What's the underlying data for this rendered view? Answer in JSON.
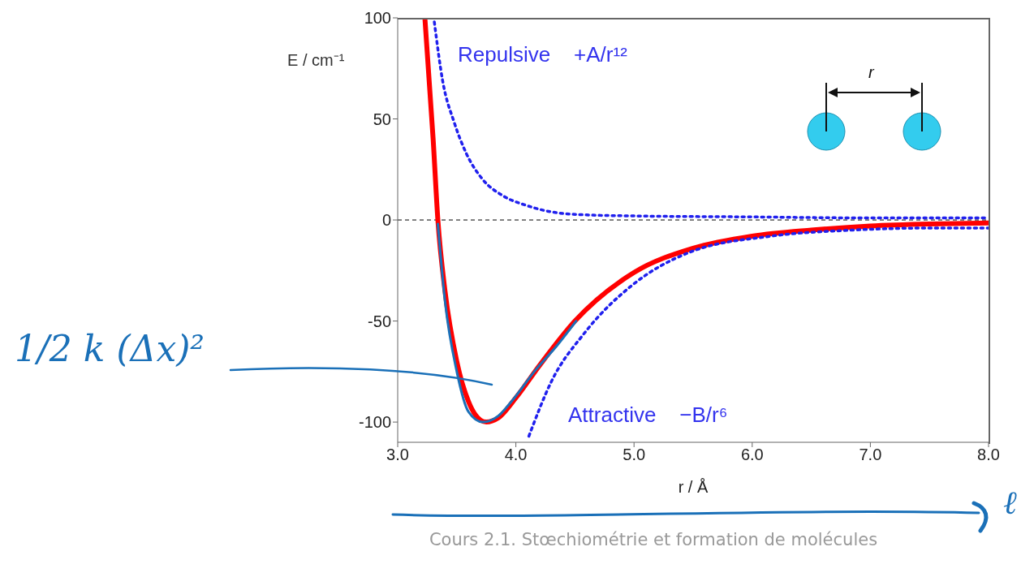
{
  "chart_data": {
    "type": "line",
    "xlabel": "r / Å",
    "ylabel": "E / cm⁻¹",
    "xlim": [
      3,
      8
    ],
    "xticks": [
      {
        "value": 3,
        "label": "3.0"
      },
      {
        "value": 4,
        "label": "4.0"
      },
      {
        "value": 5,
        "label": "5.0"
      },
      {
        "value": 6,
        "label": "6.0"
      },
      {
        "value": 7,
        "label": "7.0"
      },
      {
        "value": 8,
        "label": "8.0"
      }
    ],
    "ylim": [
      -110,
      100
    ],
    "yticks": [
      -100,
      -50,
      0,
      50,
      100
    ],
    "grid": false,
    "legend": false,
    "marker": "none",
    "series": [
      {
        "color": "#ff0000",
        "line_style": "solid",
        "x": [
          3.23,
          3.3,
          3.34,
          3.4,
          3.5,
          3.6,
          3.7,
          3.75,
          3.85,
          4.0,
          4.2,
          4.5,
          5.0,
          5.5,
          6.0,
          6.5,
          7.0,
          7.5,
          8.0
        ],
        "values": [
          100,
          40,
          0,
          -35,
          -70,
          -90,
          -99,
          -100,
          -98,
          -88,
          -72,
          -50,
          -26,
          -14,
          -8,
          -5,
          -3,
          -2,
          -1.5
        ]
      },
      {
        "color": "#2020ee",
        "line_style": "dotted",
        "x": [
          3.31,
          3.38,
          3.48,
          3.58,
          3.72,
          3.89,
          4.1,
          4.3,
          4.6,
          5.0,
          6.0,
          7.0,
          8.0
        ],
        "values": [
          98,
          69,
          48,
          33,
          20,
          12,
          7,
          4,
          2.5,
          2,
          1.5,
          1,
          1
        ]
      },
      {
        "color": "#2020ee",
        "line_style": "dotted",
        "x": [
          4.11,
          4.3,
          4.58,
          4.99,
          5.47,
          6.16,
          6.85,
          7.5,
          8.0
        ],
        "values": [
          -107,
          -80,
          -56,
          -32,
          -16,
          -8,
          -5,
          -4,
          -4
        ]
      },
      {
        "color": "#1a70b8",
        "line_style": "solid",
        "x": [
          3.34,
          3.4,
          3.5,
          3.6,
          3.72,
          3.85,
          3.96,
          4.17,
          4.35,
          4.51
        ],
        "values": [
          -2,
          -40,
          -75,
          -95,
          -100,
          -97,
          -90,
          -74,
          -62,
          -50
        ]
      }
    ],
    "ref_lines": [
      {
        "axis": "y",
        "value": 0,
        "color": "#000000",
        "line_style": "dashed"
      }
    ],
    "annotations": [
      "Repulsive    +A/r¹²",
      "Attractive    −B/r⁶",
      "1/2 k (Δx)²",
      "ℓ",
      "Cours 2.1. Stœchiométrie et formation de molécules",
      "r"
    ]
  }
}
